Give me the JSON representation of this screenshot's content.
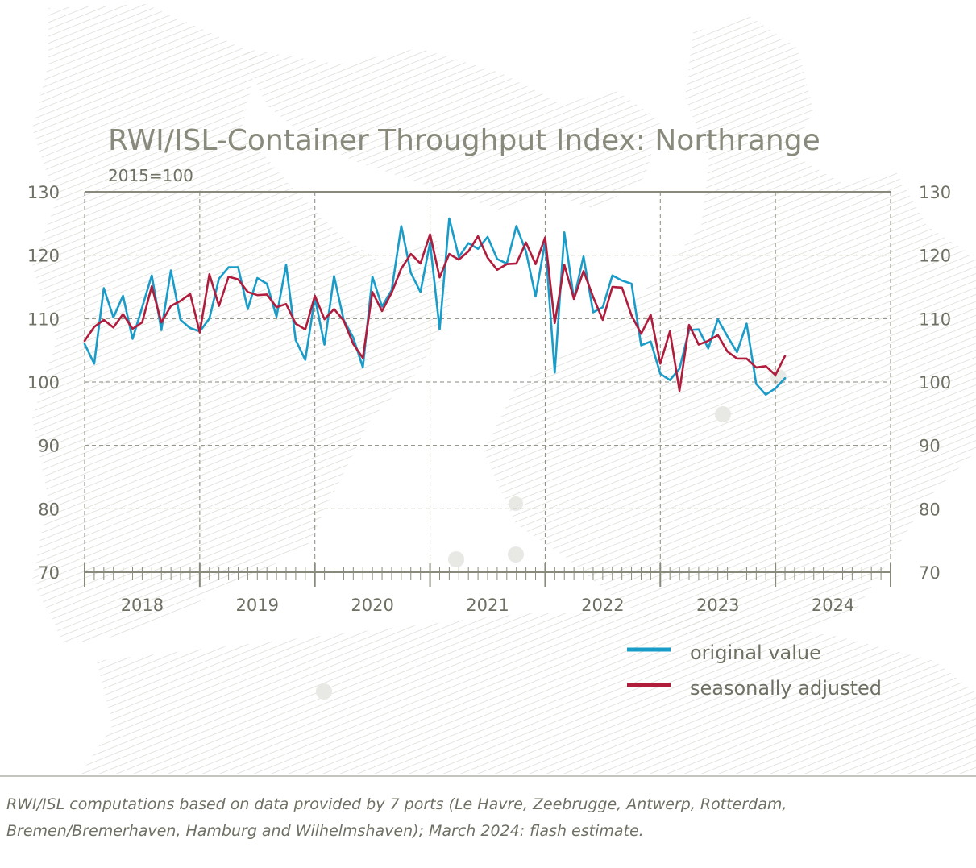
{
  "chart_data": {
    "type": "line",
    "title": "RWI/ISL-Container Throughput Index: Northrange",
    "subtitle": "2015=100",
    "ylim": [
      70,
      130
    ],
    "yticks": [
      70,
      80,
      90,
      100,
      110,
      120,
      130
    ],
    "ytick_labels": [
      "70",
      "80",
      "90",
      "100",
      "110",
      "120",
      "130"
    ],
    "year_labels": [
      "2018",
      "2019",
      "2020",
      "2021",
      "2022",
      "2023",
      "2024"
    ],
    "x_start": "2018-01",
    "months_total": 84,
    "grid": true,
    "legend_position": "bottom-right",
    "series": [
      {
        "name": "original value",
        "color": "#1a9cc9",
        "values": [
          106.0,
          102.9,
          114.8,
          110.2,
          113.6,
          106.8,
          111.8,
          116.8,
          108.2,
          117.6,
          109.8,
          108.5,
          108.0,
          110.0,
          116.3,
          118.1,
          118.1,
          111.5,
          116.4,
          115.5,
          110.3,
          118.5,
          106.6,
          103.5,
          113.3,
          105.9,
          116.7,
          109.8,
          107.0,
          102.3,
          116.6,
          111.9,
          114.5,
          124.6,
          117.2,
          114.2,
          122.0,
          108.3,
          125.8,
          119.7,
          121.9,
          121.0,
          122.9,
          119.4,
          118.7,
          124.6,
          120.6,
          113.5,
          122.1,
          101.5,
          123.6,
          113.1,
          119.8,
          111.0,
          111.8,
          116.8,
          116.0,
          115.5,
          105.8,
          106.4,
          101.3,
          100.3,
          102.1,
          108.2,
          108.3,
          105.3,
          109.9,
          107.2,
          104.7,
          109.2,
          99.7,
          98.0,
          99.0,
          100.6
        ]
      },
      {
        "name": "seasonally adjusted",
        "color": "#b01c3c",
        "values": [
          106.5,
          108.7,
          109.8,
          108.6,
          110.7,
          108.4,
          109.4,
          115.1,
          109.4,
          112.0,
          112.8,
          113.9,
          107.8,
          117.0,
          112.0,
          116.6,
          116.2,
          114.2,
          113.7,
          113.8,
          111.8,
          112.3,
          109.2,
          108.3,
          113.6,
          109.9,
          111.5,
          109.7,
          106.0,
          103.8,
          114.2,
          111.2,
          114.1,
          117.9,
          120.2,
          118.7,
          123.3,
          116.5,
          120.2,
          119.3,
          120.6,
          123.0,
          119.6,
          117.7,
          118.6,
          118.7,
          122.0,
          118.6,
          122.8,
          109.3,
          118.5,
          113.1,
          117.5,
          113.4,
          109.8,
          115.0,
          114.9,
          110.5,
          107.6,
          110.6,
          102.9,
          108.0,
          98.6,
          109.0,
          105.9,
          106.5,
          107.4,
          104.8,
          103.7,
          103.7,
          102.3,
          102.5,
          101.1,
          104.1
        ]
      }
    ]
  },
  "legend": {
    "original_label": "original value",
    "adjusted_label": "seasonally adjusted"
  },
  "footnote": {
    "line1": "RWI/ISL computations based on data provided by 7 ports (Le Havre, Zeebrugge, Antwerp, Rotterdam,",
    "line2": "Bremen/Bremerhaven, Hamburg and Wilhelmshaven); March 2024: flash estimate."
  }
}
